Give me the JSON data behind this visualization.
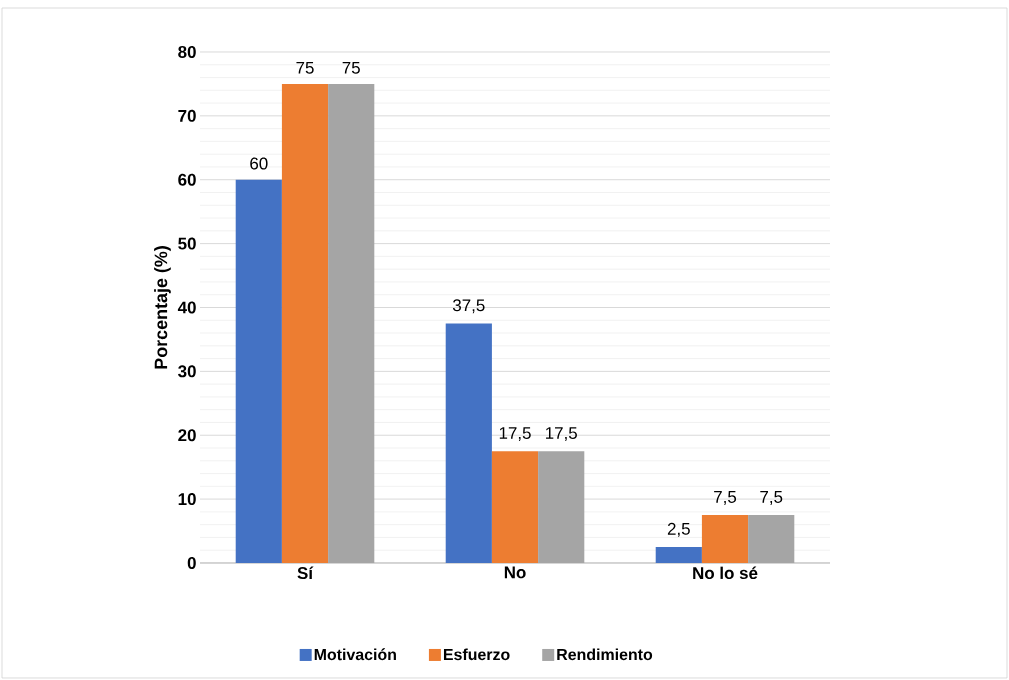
{
  "chart_data": {
    "type": "bar",
    "ylabel": "Porcentaje (%)",
    "categories": [
      "Sí",
      "No",
      "No lo sé"
    ],
    "series": [
      {
        "name": "Motivación",
        "color": "#4472c4",
        "values": [
          60,
          37.5,
          2.5
        ],
        "value_labels": [
          "60",
          "37,5",
          "2,5"
        ]
      },
      {
        "name": "Esfuerzo",
        "color": "#ed7d31",
        "values": [
          75,
          17.5,
          7.5
        ],
        "value_labels": [
          "75",
          "17,5",
          "7,5"
        ]
      },
      {
        "name": "Rendimiento",
        "color": "#a5a5a5",
        "values": [
          75,
          17.5,
          7.5
        ],
        "value_labels": [
          "75",
          "17,5",
          "7,5"
        ]
      }
    ],
    "ylim": [
      0,
      80
    ],
    "yticks": [
      0,
      10,
      20,
      30,
      40,
      50,
      60,
      70,
      80
    ],
    "grid": "y",
    "legend": "bottom"
  }
}
